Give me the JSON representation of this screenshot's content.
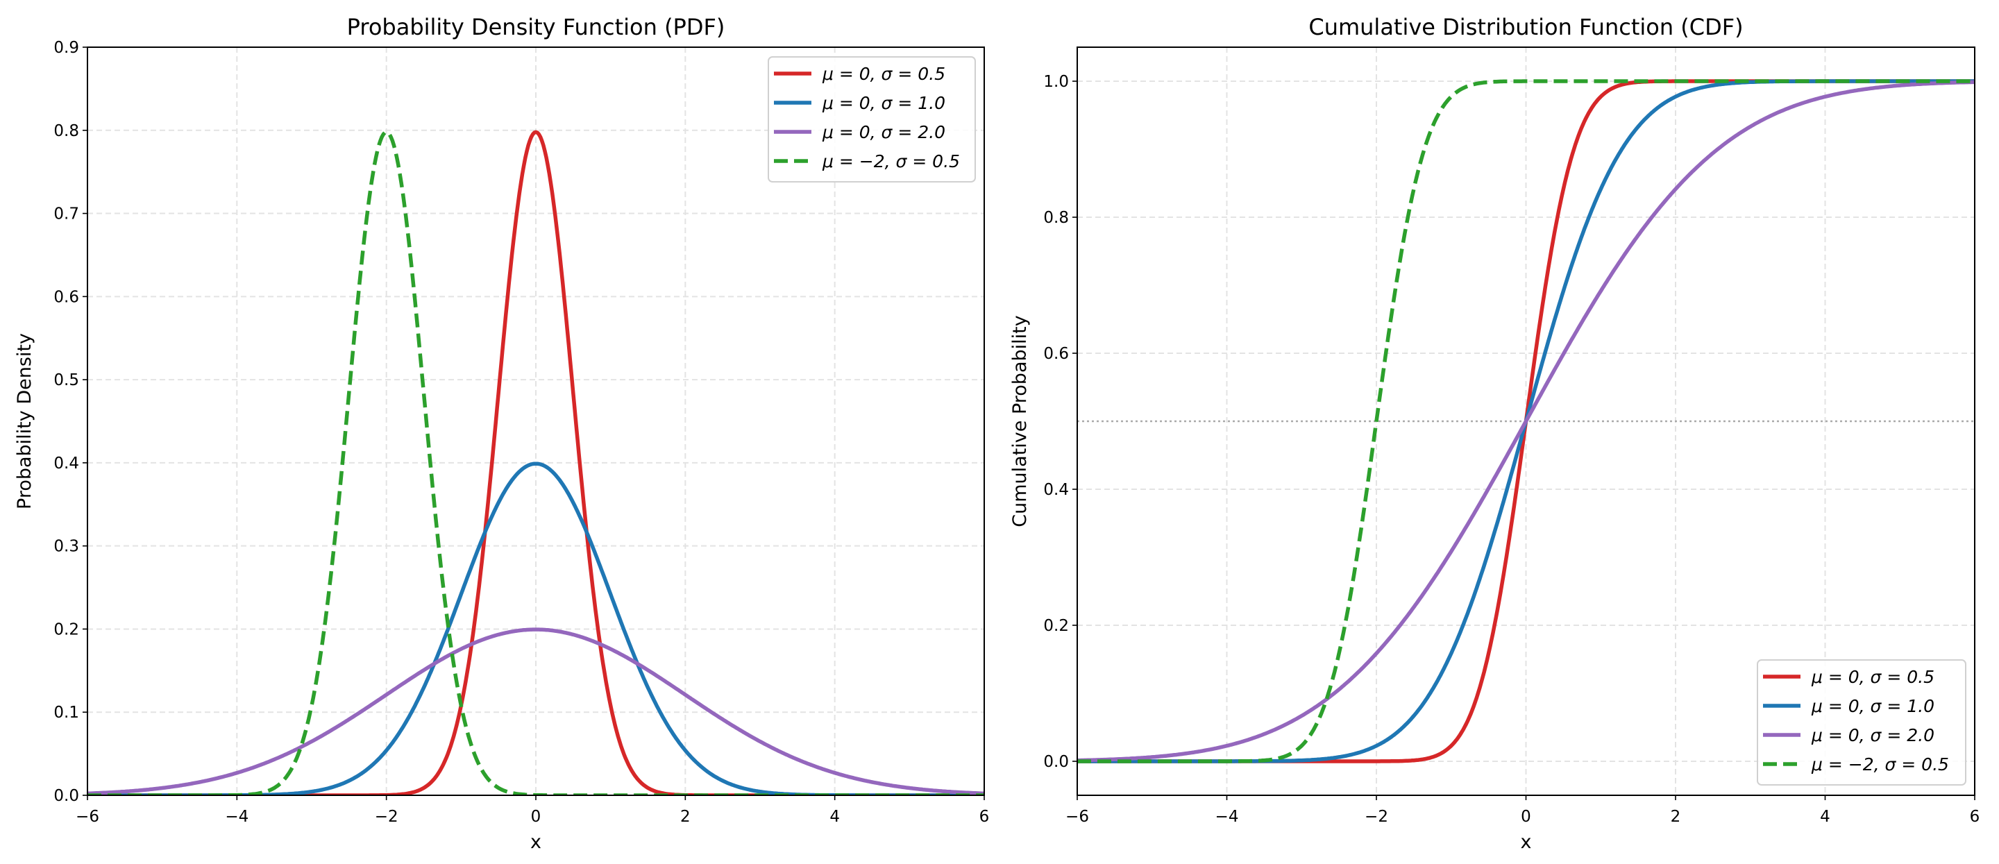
{
  "chart_data": [
    {
      "type": "line",
      "title": "Probability Density Function (PDF)",
      "xlabel": "x",
      "ylabel": "Probability Density",
      "xlim": [
        -6,
        6
      ],
      "ylim": [
        0,
        0.9
      ],
      "xticks": [
        "−6",
        "−4",
        "−2",
        "0",
        "2",
        "4",
        "6"
      ],
      "yticks": [
        "0.0",
        "0.1",
        "0.2",
        "0.3",
        "0.4",
        "0.5",
        "0.6",
        "0.7",
        "0.8",
        "0.9"
      ],
      "grid": true,
      "legend_position": "top-right",
      "function": "pdf",
      "series": [
        {
          "name": "μ = 0, σ = 0.5",
          "mu": 0,
          "sigma": 0.5,
          "color": "#d62728",
          "dashed": false
        },
        {
          "name": "μ = 0, σ = 1.0",
          "mu": 0,
          "sigma": 1.0,
          "color": "#1f77b4",
          "dashed": false
        },
        {
          "name": "μ = 0, σ = 2.0",
          "mu": 0,
          "sigma": 2.0,
          "color": "#9467bd",
          "dashed": false
        },
        {
          "name": "μ = −2, σ = 0.5",
          "mu": -2,
          "sigma": 0.5,
          "color": "#2ca02c",
          "dashed": true
        }
      ]
    },
    {
      "type": "line",
      "title": "Cumulative Distribution Function (CDF)",
      "xlabel": "x",
      "ylabel": "Cumulative Probability",
      "xlim": [
        -6,
        6
      ],
      "ylim": [
        -0.05,
        1.05
      ],
      "xticks": [
        "−6",
        "−4",
        "−2",
        "0",
        "2",
        "4",
        "6"
      ],
      "yticks": [
        "0.0",
        "0.2",
        "0.4",
        "0.6",
        "0.8",
        "1.0"
      ],
      "grid": true,
      "legend_position": "bottom-right",
      "function": "cdf",
      "reference_line_y": 0.5,
      "series": [
        {
          "name": "μ = 0, σ = 0.5",
          "mu": 0,
          "sigma": 0.5,
          "color": "#d62728",
          "dashed": false
        },
        {
          "name": "μ = 0, σ = 1.0",
          "mu": 0,
          "sigma": 1.0,
          "color": "#1f77b4",
          "dashed": false
        },
        {
          "name": "μ = 0, σ = 2.0",
          "mu": 0,
          "sigma": 2.0,
          "color": "#9467bd",
          "dashed": false
        },
        {
          "name": "μ = −2, σ = 0.5",
          "mu": -2,
          "sigma": 0.5,
          "color": "#2ca02c",
          "dashed": true
        }
      ]
    }
  ]
}
